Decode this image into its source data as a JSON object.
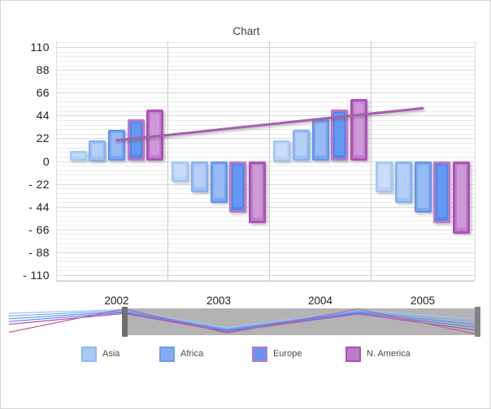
{
  "chart_data": {
    "type": "bar",
    "title": "Chart",
    "categories": [
      "2002",
      "2003",
      "2004",
      "2005"
    ],
    "series": [
      {
        "name": "Asia",
        "fill": "#b6d3f8",
        "border": "#a0c4f6",
        "highlight": "#cbddfa",
        "values": [
          10,
          -20,
          20,
          -30
        ]
      },
      {
        "name": "",
        "fill": "#9dc1f6",
        "border": "#82aff3",
        "highlight": "#b5cff8",
        "values": [
          20,
          -30,
          30,
          -40
        ]
      },
      {
        "name": "Africa",
        "fill": "#7ba7f1",
        "border": "#5e93ed",
        "highlight": "#96baf4",
        "values": [
          30,
          -40,
          40,
          -50
        ]
      },
      {
        "name": "Europe",
        "fill": "#4c88ef",
        "border": "#bd77c6",
        "highlight": "#639af1",
        "values": [
          40,
          -50,
          50,
          -60
        ]
      },
      {
        "name": "N. America",
        "fill": "#bf81ca",
        "border": "#ad52b6",
        "highlight": "#cd99d7",
        "values": [
          50,
          -60,
          60,
          -70
        ]
      }
    ],
    "trend_line": {
      "color": "#a75fb0",
      "values": [
        20,
        30.3,
        40.7,
        51
      ]
    },
    "ylim": [
      -110,
      110
    ],
    "y_ticks": [
      110,
      88,
      66,
      44,
      22,
      0,
      -22,
      -44,
      -66,
      -88,
      -110
    ],
    "y_tick_labels": [
      "110",
      "88",
      "66",
      "44",
      "22",
      "0",
      "- 22",
      "- 44",
      "- 66",
      "- 88",
      "- 110"
    ],
    "legend_position": "bottom",
    "grid": "on"
  },
  "legend": {
    "items": [
      {
        "label": "Asia",
        "fill": "#a9c9f7",
        "border": "#8fb8f4"
      },
      {
        "label": "Africa",
        "fill": "#85acf2",
        "border": "#6d9bef"
      },
      {
        "label": "Europe",
        "fill": "#6695f0",
        "border": "#bd77c6"
      },
      {
        "label": "N. America",
        "fill": "#bb7cc6",
        "border": "#a951b3"
      }
    ]
  },
  "colors": {
    "grid_minor": "#ebebeb",
    "grid_major": "#d8d8d8",
    "grid_vertical": "#cbcbcb",
    "navigator_mask": "#b3b3b3",
    "navigator_handle": "#6e6e6e",
    "navigator_trend_line": "#c4608b"
  }
}
